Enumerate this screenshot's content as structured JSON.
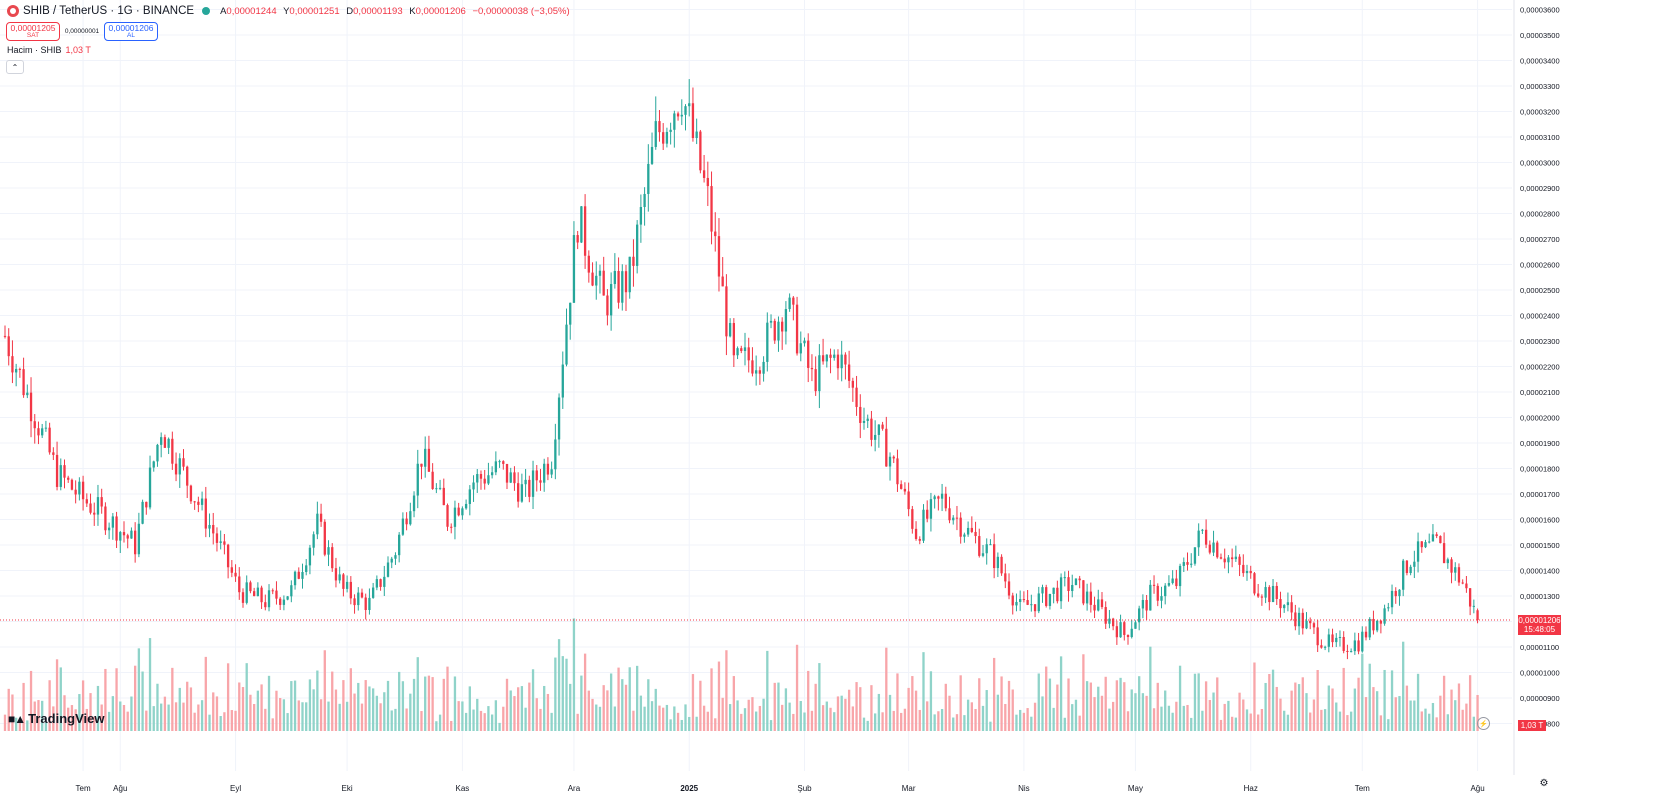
{
  "header": {
    "symbol": "SHIB / TetherUS · 1G · BINANCE",
    "open_label": "A",
    "open": "0,00001244",
    "high_label": "Y",
    "high": "0,00001251",
    "low_label": "D",
    "low": "0,00001193",
    "close_label": "K",
    "close": "0,00001206",
    "change": "−0,00000038 (−3,05%)"
  },
  "trade": {
    "sell_price": "0,00001205",
    "sell_label": "SAT",
    "spread": "0,00000001",
    "buy_price": "0,00001206",
    "buy_label": "AL"
  },
  "volume_legend": {
    "name": "Hacim · SHIB",
    "value": "1,03 T"
  },
  "last_price": {
    "price": "0,00001206",
    "countdown": "15:48:05"
  },
  "last_volume": "1,03 T",
  "brand": "TradingView",
  "colors": {
    "up": "#26a69a",
    "down": "#f23645",
    "vol_up": "#8fd3c9",
    "vol_down": "#f8a5a9",
    "grid": "#f0f3fa"
  },
  "chart_data": {
    "type": "candlestick",
    "price_axis_ticks": [
      "0,00003600",
      "0,00003500",
      "0,00003400",
      "0,00003300",
      "0,00003200",
      "0,00003100",
      "0,00003000",
      "0,00002900",
      "0,00002800",
      "0,00002700",
      "0,00002600",
      "0,00002500",
      "0,00002400",
      "0,00002300",
      "0,00002200",
      "0,00002100",
      "0,00002000",
      "0,00001900",
      "0,00001800",
      "0,00001700",
      "0,00001600",
      "0,00001500",
      "0,00001400",
      "0,00001300",
      "0,00001200",
      "0,00001100",
      "0,00001000",
      "0,00000900",
      "0,00000800"
    ],
    "ylim": [
      8e-06,
      3.6e-05
    ],
    "x_axis_labels": [
      "Tem",
      "Ağu",
      "Eyl",
      "Eki",
      "Kas",
      "Ara",
      "2025",
      "Şub",
      "Mar",
      "Nis",
      "May",
      "Haz",
      "Tem",
      "Ağu"
    ],
    "period": "1G",
    "close_path": [
      [
        "2024-07-01",
        2.32e-05
      ],
      [
        "2024-07-08",
        2.05e-05
      ],
      [
        "2024-07-15",
        1.78e-05
      ],
      [
        "2024-07-22",
        1.68e-05
      ],
      [
        "2024-07-29",
        1.6e-05
      ],
      [
        "2024-08-05",
        1.5e-05
      ],
      [
        "2024-08-12",
        1.96e-05
      ],
      [
        "2024-08-19",
        1.75e-05
      ],
      [
        "2024-08-26",
        1.55e-05
      ],
      [
        "2024-09-02",
        1.32e-05
      ],
      [
        "2024-09-09",
        1.28e-05
      ],
      [
        "2024-09-16",
        1.32e-05
      ],
      [
        "2024-09-23",
        1.58e-05
      ],
      [
        "2024-09-30",
        1.32e-05
      ],
      [
        "2024-10-07",
        1.27e-05
      ],
      [
        "2024-10-14",
        1.48e-05
      ],
      [
        "2024-10-21",
        1.85e-05
      ],
      [
        "2024-10-28",
        1.6e-05
      ],
      [
        "2024-11-04",
        1.75e-05
      ],
      [
        "2024-11-11",
        1.8e-05
      ],
      [
        "2024-11-18",
        1.7e-05
      ],
      [
        "2024-11-25",
        1.85e-05
      ],
      [
        "2024-12-02",
        2.78e-05
      ],
      [
        "2024-12-09",
        2.45e-05
      ],
      [
        "2024-12-16",
        2.55e-05
      ],
      [
        "2024-12-23",
        3.1e-05
      ],
      [
        "2024-12-30",
        3.28e-05
      ],
      [
        "2025-01-06",
        2.85e-05
      ],
      [
        "2025-01-13",
        2.2e-05
      ],
      [
        "2025-01-20",
        2.25e-05
      ],
      [
        "2025-01-27",
        2.45e-05
      ],
      [
        "2025-02-03",
        2.15e-05
      ],
      [
        "2025-02-10",
        2.25e-05
      ],
      [
        "2025-02-17",
        2e-05
      ],
      [
        "2025-02-24",
        1.85e-05
      ],
      [
        "2025-03-03",
        1.55e-05
      ],
      [
        "2025-03-10",
        1.68e-05
      ],
      [
        "2025-03-17",
        1.55e-05
      ],
      [
        "2025-03-24",
        1.45e-05
      ],
      [
        "2025-03-31",
        1.25e-05
      ],
      [
        "2025-04-07",
        1.3e-05
      ],
      [
        "2025-04-14",
        1.35e-05
      ],
      [
        "2025-04-21",
        1.25e-05
      ],
      [
        "2025-04-28",
        1.15e-05
      ],
      [
        "2025-05-05",
        1.3e-05
      ],
      [
        "2025-05-12",
        1.35e-05
      ],
      [
        "2025-05-19",
        1.55e-05
      ],
      [
        "2025-05-26",
        1.45e-05
      ],
      [
        "2025-06-02",
        1.35e-05
      ],
      [
        "2025-06-09",
        1.28e-05
      ],
      [
        "2025-06-16",
        1.18e-05
      ],
      [
        "2025-06-23",
        1.1e-05
      ],
      [
        "2025-06-30",
        1.12e-05
      ],
      [
        "2025-07-07",
        1.25e-05
      ],
      [
        "2025-07-14",
        1.45e-05
      ],
      [
        "2025-07-21",
        1.5e-05
      ],
      [
        "2025-07-28",
        1.35e-05
      ],
      [
        "2025-08-01",
        1.21e-05
      ]
    ],
    "highest_high": 3.35e-05,
    "lowest_low": 1e-05,
    "last": {
      "open": 1.244e-05,
      "high": 1.251e-05,
      "low": 1.193e-05,
      "close": 1.206e-05
    }
  }
}
